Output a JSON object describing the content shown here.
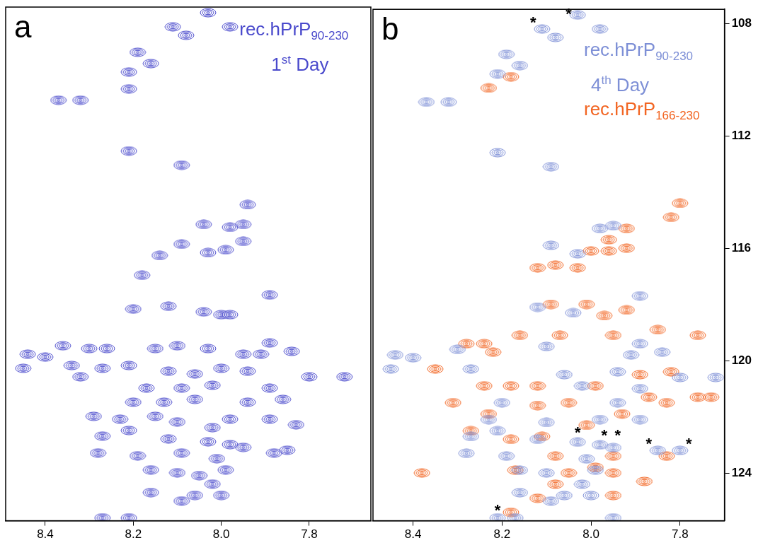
{
  "chart_data": [
    {
      "type": "scatter",
      "title": "a",
      "subtitle": "1st Day",
      "subtitle_superscript": "st",
      "xlim": [
        8.49,
        7.66
      ],
      "xticks": [
        8.4,
        8.2,
        {
          "value": 8,
          "label": "8.0"
        },
        7.8
      ],
      "ylim": [
        125.7,
        107.5
      ],
      "grid": false,
      "tick_labels": "x",
      "series": [
        {
          "name": "rec.hPrP90-230",
          "name_subscript": "90-230",
          "color": "#4a4acc",
          "marker": "contour",
          "points": [
            [
              8.11,
              108.2
            ],
            [
              8.03,
              107.7
            ],
            [
              8.08,
              108.5
            ],
            [
              7.98,
              108.2
            ],
            [
              8.19,
              109.1
            ],
            [
              8.16,
              109.5
            ],
            [
              8.21,
              109.8
            ],
            [
              8.21,
              110.4
            ],
            [
              8.37,
              110.8
            ],
            [
              8.32,
              110.8
            ],
            [
              8.21,
              112.6
            ],
            [
              8.09,
              113.1
            ],
            [
              7.94,
              114.5
            ],
            [
              8.04,
              115.2
            ],
            [
              7.95,
              115.2
            ],
            [
              7.98,
              115.3
            ],
            [
              8.03,
              116.2
            ],
            [
              7.99,
              116.1
            ],
            [
              7.95,
              115.8
            ],
            [
              8.09,
              115.9
            ],
            [
              8.14,
              116.3
            ],
            [
              8.18,
              117.0
            ],
            [
              7.89,
              117.7
            ],
            [
              8.2,
              118.2
            ],
            [
              8.12,
              118.1
            ],
            [
              8.04,
              118.3
            ],
            [
              8.0,
              118.4
            ],
            [
              7.98,
              118.4
            ],
            [
              7.89,
              119.4
            ],
            [
              8.36,
              119.5
            ],
            [
              8.26,
              119.6
            ],
            [
              8.3,
              119.6
            ],
            [
              8.44,
              119.8
            ],
            [
              8.4,
              119.9
            ],
            [
              8.15,
              119.6
            ],
            [
              8.1,
              119.5
            ],
            [
              8.03,
              119.6
            ],
            [
              7.95,
              119.8
            ],
            [
              7.91,
              119.8
            ],
            [
              7.84,
              119.7
            ],
            [
              8.45,
              120.3
            ],
            [
              8.34,
              120.2
            ],
            [
              8.27,
              120.3
            ],
            [
              8.21,
              120.2
            ],
            [
              8.12,
              120.4
            ],
            [
              8.06,
              120.5
            ],
            [
              8.0,
              120.3
            ],
            [
              7.94,
              120.4
            ],
            [
              7.8,
              120.6
            ],
            [
              7.72,
              120.6
            ],
            [
              8.32,
              120.6
            ],
            [
              8.17,
              121.0
            ],
            [
              8.09,
              121.0
            ],
            [
              8.02,
              120.9
            ],
            [
              7.89,
              121.0
            ],
            [
              8.2,
              121.5
            ],
            [
              8.13,
              121.5
            ],
            [
              8.06,
              121.4
            ],
            [
              7.94,
              121.5
            ],
            [
              7.86,
              121.4
            ],
            [
              8.29,
              122.0
            ],
            [
              8.23,
              122.1
            ],
            [
              8.15,
              122.0
            ],
            [
              8.1,
              122.2
            ],
            [
              8.02,
              122.4
            ],
            [
              7.98,
              122.1
            ],
            [
              7.89,
              122.1
            ],
            [
              7.83,
              122.3
            ],
            [
              8.27,
              122.7
            ],
            [
              8.21,
              122.5
            ],
            [
              8.12,
              122.8
            ],
            [
              8.03,
              122.9
            ],
            [
              7.98,
              123.0
            ],
            [
              7.95,
              123.1
            ],
            [
              7.85,
              123.2
            ],
            [
              8.28,
              123.3
            ],
            [
              8.19,
              123.4
            ],
            [
              8.09,
              123.3
            ],
            [
              8.01,
              123.5
            ],
            [
              7.88,
              123.3
            ],
            [
              8.16,
              123.9
            ],
            [
              8.1,
              124.0
            ],
            [
              8.05,
              124.1
            ],
            [
              7.99,
              123.9
            ],
            [
              8.02,
              124.4
            ],
            [
              8.16,
              124.7
            ],
            [
              8.06,
              124.8
            ],
            [
              8.0,
              124.8
            ],
            [
              8.09,
              125.0
            ],
            [
              8.27,
              125.6
            ],
            [
              8.21,
              125.6
            ]
          ]
        }
      ]
    },
    {
      "type": "scatter",
      "title": "b",
      "subtitle": "4th Day",
      "subtitle_superscript": "th",
      "xlim": [
        8.49,
        7.7
      ],
      "xticks": [
        8.4,
        8.2,
        {
          "value": 8,
          "label": "8.0"
        },
        7.8
      ],
      "ylim": [
        125.7,
        107.5
      ],
      "yticks": [
        108,
        112,
        116,
        120,
        124
      ],
      "grid": false,
      "series": [
        {
          "name": "rec.hPrP90-230",
          "name_subscript": "90-230",
          "color": "#7d8fd6",
          "marker": "contour",
          "points": [
            [
              8.11,
              108.2
            ],
            [
              8.03,
              107.7
            ],
            [
              8.08,
              108.5
            ],
            [
              7.98,
              108.2
            ],
            [
              8.19,
              109.1
            ],
            [
              8.16,
              109.5
            ],
            [
              8.21,
              109.8
            ],
            [
              8.37,
              110.8
            ],
            [
              8.32,
              110.8
            ],
            [
              8.21,
              112.6
            ],
            [
              8.09,
              113.1
            ],
            [
              7.95,
              115.2
            ],
            [
              7.98,
              115.3
            ],
            [
              8.03,
              116.2
            ],
            [
              8.09,
              115.9
            ],
            [
              7.89,
              117.7
            ],
            [
              8.12,
              118.1
            ],
            [
              8.04,
              118.3
            ],
            [
              7.89,
              119.4
            ],
            [
              8.3,
              119.6
            ],
            [
              8.44,
              119.8
            ],
            [
              8.4,
              119.9
            ],
            [
              8.1,
              119.5
            ],
            [
              7.91,
              119.8
            ],
            [
              7.84,
              119.7
            ],
            [
              8.45,
              120.3
            ],
            [
              8.27,
              120.3
            ],
            [
              8.06,
              120.5
            ],
            [
              7.94,
              120.4
            ],
            [
              7.8,
              120.6
            ],
            [
              7.72,
              120.6
            ],
            [
              8.02,
              120.9
            ],
            [
              7.89,
              121.0
            ],
            [
              8.2,
              121.5
            ],
            [
              7.94,
              121.5
            ],
            [
              8.23,
              122.1
            ],
            [
              8.1,
              122.2
            ],
            [
              7.98,
              122.1
            ],
            [
              7.89,
              122.1
            ],
            [
              8.27,
              122.7
            ],
            [
              8.21,
              122.5
            ],
            [
              8.12,
              122.8
            ],
            [
              8.03,
              122.9
            ],
            [
              7.98,
              123.0
            ],
            [
              7.95,
              123.1
            ],
            [
              7.85,
              123.2
            ],
            [
              7.8,
              123.2
            ],
            [
              8.28,
              123.3
            ],
            [
              8.19,
              123.4
            ],
            [
              8.01,
              123.5
            ],
            [
              8.16,
              123.9
            ],
            [
              8.1,
              124.0
            ],
            [
              7.99,
              123.9
            ],
            [
              8.02,
              124.4
            ],
            [
              8.16,
              124.7
            ],
            [
              8.06,
              124.8
            ],
            [
              8.0,
              124.8
            ],
            [
              8.09,
              125.0
            ],
            [
              8.21,
              125.6
            ],
            [
              8.17,
              125.6
            ],
            [
              7.95,
              125.6
            ]
          ]
        },
        {
          "name": "rec.hPrP166-230",
          "name_subscript": "166-230",
          "color": "#f26522",
          "marker": "contour",
          "points": [
            [
              8.18,
              109.9
            ],
            [
              8.23,
              110.3
            ],
            [
              7.8,
              114.4
            ],
            [
              7.82,
              114.9
            ],
            [
              7.92,
              115.3
            ],
            [
              7.96,
              115.7
            ],
            [
              7.92,
              116.0
            ],
            [
              7.96,
              116.1
            ],
            [
              8.0,
              116.1
            ],
            [
              8.03,
              116.7
            ],
            [
              8.08,
              116.6
            ],
            [
              8.12,
              116.7
            ],
            [
              8.09,
              118.0
            ],
            [
              8.01,
              118.0
            ],
            [
              7.97,
              118.4
            ],
            [
              7.92,
              118.2
            ],
            [
              8.16,
              119.1
            ],
            [
              8.24,
              119.4
            ],
            [
              8.07,
              119.1
            ],
            [
              7.95,
              119.1
            ],
            [
              7.85,
              118.9
            ],
            [
              7.76,
              119.1
            ],
            [
              8.28,
              119.4
            ],
            [
              8.22,
              119.7
            ],
            [
              8.35,
              120.3
            ],
            [
              8.24,
              120.9
            ],
            [
              8.18,
              120.9
            ],
            [
              8.12,
              120.9
            ],
            [
              7.99,
              120.9
            ],
            [
              7.89,
              120.5
            ],
            [
              7.82,
              120.4
            ],
            [
              7.76,
              121.3
            ],
            [
              8.31,
              121.5
            ],
            [
              8.23,
              121.9
            ],
            [
              8.12,
              121.6
            ],
            [
              8.05,
              121.5
            ],
            [
              8.01,
              122.3
            ],
            [
              7.93,
              121.9
            ],
            [
              7.87,
              121.3
            ],
            [
              7.83,
              121.5
            ],
            [
              7.73,
              121.3
            ],
            [
              8.27,
              122.5
            ],
            [
              8.18,
              122.8
            ],
            [
              8.11,
              122.7
            ],
            [
              8.08,
              123.4
            ],
            [
              7.95,
              123.4
            ],
            [
              7.83,
              123.4
            ],
            [
              8.38,
              124.0
            ],
            [
              8.17,
              123.9
            ],
            [
              8.05,
              124.0
            ],
            [
              7.99,
              123.8
            ],
            [
              7.95,
              124.0
            ],
            [
              7.88,
              124.3
            ],
            [
              8.08,
              124.4
            ],
            [
              7.95,
              124.8
            ],
            [
              8.12,
              124.9
            ],
            [
              8.18,
              125.4
            ]
          ]
        }
      ],
      "annotations": [
        {
          "text": "*",
          "x": 8.13,
          "y": 107.9
        },
        {
          "text": "*",
          "x": 8.05,
          "y": 107.6
        },
        {
          "text": "*",
          "x": 8.03,
          "y": 122.5
        },
        {
          "text": "*",
          "x": 7.97,
          "y": 122.6
        },
        {
          "text": "*",
          "x": 7.94,
          "y": 122.6
        },
        {
          "text": "*",
          "x": 7.87,
          "y": 122.9
        },
        {
          "text": "*",
          "x": 7.78,
          "y": 122.9
        },
        {
          "text": "*",
          "x": 8.21,
          "y": 125.25
        }
      ]
    }
  ]
}
